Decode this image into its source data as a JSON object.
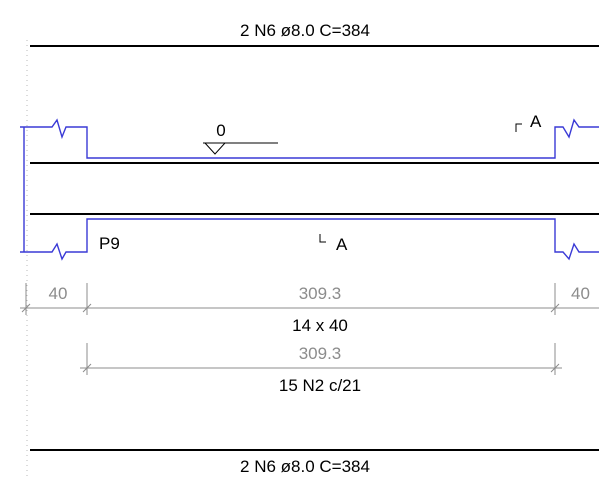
{
  "top_bar_label": "2 N6 ø8.0  C=384",
  "bottom_bar_label": "2 N6 ø8.0  C=384",
  "level_marker": "0",
  "section_cut_top": "A",
  "section_cut_bottom": "A",
  "support_label": "P9",
  "dims": {
    "left_support": "40",
    "span": "309.3",
    "right_support": "40",
    "spacing_note": "14 x 40",
    "stirrup_span": "309.3",
    "stirrup_note": "15 N2 c/21"
  },
  "colors": {
    "beam_outline": "#3a3ad6",
    "rebar": "#000000",
    "dimension": "#8c8c8c"
  }
}
